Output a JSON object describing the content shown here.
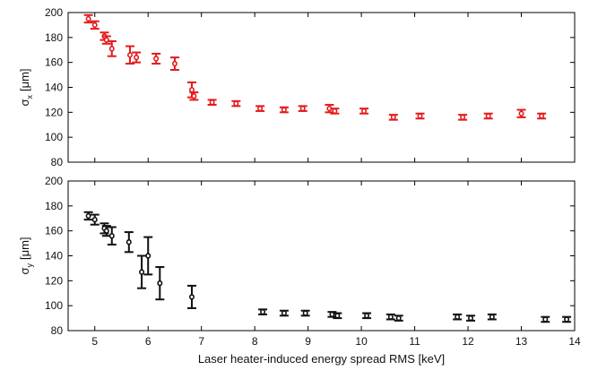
{
  "chart_data": [
    {
      "type": "scatter",
      "error_bars": true,
      "title": "",
      "ylabel_main": "σ",
      "ylabel_sub": "x",
      "ylabel_unit": "[μm]",
      "xlabel": "",
      "xlim": [
        4.5,
        14
      ],
      "ylim": [
        80,
        200
      ],
      "yticks": [
        "80",
        "100",
        "120",
        "140",
        "160",
        "180",
        "200"
      ],
      "xticks_visible": false,
      "grid": false,
      "color": "#e41a1c",
      "series": [
        {
          "points": [
            {
              "x": 4.88,
              "y": 195,
              "err": 3
            },
            {
              "x": 5.0,
              "y": 190,
              "err": 3
            },
            {
              "x": 5.18,
              "y": 181,
              "err": 3
            },
            {
              "x": 5.22,
              "y": 178,
              "err": 3
            },
            {
              "x": 5.32,
              "y": 171,
              "err": 6
            },
            {
              "x": 5.66,
              "y": 166,
              "err": 7
            },
            {
              "x": 5.78,
              "y": 164,
              "err": 4
            },
            {
              "x": 6.15,
              "y": 163,
              "err": 4
            },
            {
              "x": 6.5,
              "y": 159,
              "err": 5
            },
            {
              "x": 6.82,
              "y": 138,
              "err": 6
            },
            {
              "x": 6.86,
              "y": 133,
              "err": 3
            },
            {
              "x": 7.2,
              "y": 128,
              "err": 2
            },
            {
              "x": 7.65,
              "y": 127,
              "err": 2
            },
            {
              "x": 8.1,
              "y": 123,
              "err": 2
            },
            {
              "x": 8.55,
              "y": 122,
              "err": 2
            },
            {
              "x": 8.9,
              "y": 123,
              "err": 2
            },
            {
              "x": 9.4,
              "y": 123,
              "err": 3
            },
            {
              "x": 9.5,
              "y": 121,
              "err": 2
            },
            {
              "x": 10.05,
              "y": 121,
              "err": 2
            },
            {
              "x": 10.6,
              "y": 116,
              "err": 2
            },
            {
              "x": 11.1,
              "y": 117,
              "err": 2
            },
            {
              "x": 11.9,
              "y": 116,
              "err": 2
            },
            {
              "x": 12.38,
              "y": 117,
              "err": 2
            },
            {
              "x": 13.0,
              "y": 119,
              "err": 3
            },
            {
              "x": 13.38,
              "y": 117,
              "err": 2
            }
          ]
        }
      ]
    },
    {
      "type": "scatter",
      "error_bars": true,
      "title": "",
      "ylabel_main": "σ",
      "ylabel_sub": "y",
      "ylabel_unit": "[μm]",
      "xlabel": "Laser heater-induced energy spread RMS  [keV]",
      "xlim": [
        4.5,
        14
      ],
      "ylim": [
        80,
        200
      ],
      "xticks": [
        "5",
        "6",
        "7",
        "8",
        "9",
        "10",
        "11",
        "12",
        "13",
        "14"
      ],
      "yticks": [
        "80",
        "100",
        "120",
        "140",
        "160",
        "180",
        "200"
      ],
      "grid": false,
      "color": "#111111",
      "series": [
        {
          "points": [
            {
              "x": 4.88,
              "y": 172,
              "err": 3
            },
            {
              "x": 5.0,
              "y": 169,
              "err": 4
            },
            {
              "x": 5.18,
              "y": 162,
              "err": 4
            },
            {
              "x": 5.22,
              "y": 160,
              "err": 4
            },
            {
              "x": 5.32,
              "y": 156,
              "err": 7
            },
            {
              "x": 5.64,
              "y": 151,
              "err": 8
            },
            {
              "x": 5.88,
              "y": 127,
              "err": 13
            },
            {
              "x": 6.0,
              "y": 140,
              "err": 15
            },
            {
              "x": 6.22,
              "y": 118,
              "err": 13
            },
            {
              "x": 6.82,
              "y": 107,
              "err": 9
            },
            {
              "x": 8.15,
              "y": 95,
              "err": 2
            },
            {
              "x": 8.55,
              "y": 94,
              "err": 2
            },
            {
              "x": 8.95,
              "y": 94,
              "err": 2
            },
            {
              "x": 9.45,
              "y": 93,
              "err": 2
            },
            {
              "x": 9.55,
              "y": 92,
              "err": 2
            },
            {
              "x": 10.1,
              "y": 92,
              "err": 2
            },
            {
              "x": 10.55,
              "y": 91,
              "err": 2
            },
            {
              "x": 10.7,
              "y": 90,
              "err": 2
            },
            {
              "x": 11.8,
              "y": 91,
              "err": 2
            },
            {
              "x": 12.05,
              "y": 90,
              "err": 2
            },
            {
              "x": 12.45,
              "y": 91,
              "err": 2
            },
            {
              "x": 13.45,
              "y": 89,
              "err": 2
            },
            {
              "x": 13.85,
              "y": 89,
              "err": 2
            }
          ]
        }
      ]
    }
  ]
}
